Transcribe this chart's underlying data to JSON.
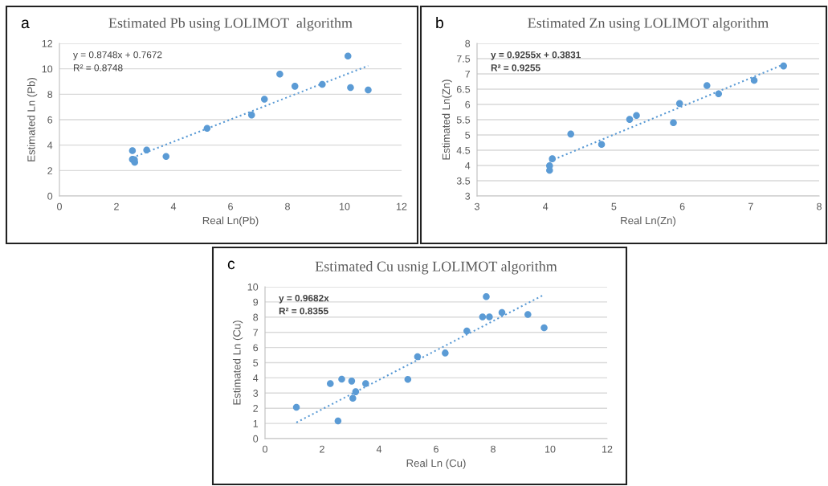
{
  "chart_data": [
    {
      "type": "scatter",
      "title": "Estimated Pb using LOLIMOT  algorithm",
      "xlabel": "Real Ln(Pb)",
      "ylabel": "Estimated Ln (Pb)",
      "annotations": [
        "a",
        "y = 0.8748x + 0.7672",
        "R² = 0.8748"
      ],
      "xlim": [
        0,
        12
      ],
      "ylim": [
        0,
        12
      ],
      "xticks": [
        0,
        2,
        4,
        6,
        8,
        10,
        12
      ],
      "yticks": [
        0,
        2,
        4,
        6,
        8,
        10,
        12
      ],
      "grid": "y",
      "marker": "circle",
      "series": [
        {
          "color": "#5b9bd5",
          "x": [
            2.56,
            3.06,
            3.74,
            2.56,
            2.63,
            2.64,
            5.18,
            6.74,
            7.19,
            7.73,
            8.26,
            9.22,
            10.12,
            10.21,
            10.83
          ],
          "values": [
            3.57,
            3.61,
            3.11,
            2.88,
            2.86,
            2.65,
            5.32,
            6.37,
            7.61,
            9.58,
            8.63,
            8.78,
            11.01,
            8.53,
            8.34
          ]
        },
        {
          "type": "line",
          "color": "#5b9bd5",
          "line_style": "dotted",
          "marker": "none",
          "x": [
            2.56,
            10.83
          ],
          "values": [
            3.01,
            10.24
          ]
        }
      ]
    },
    {
      "type": "scatter",
      "title": "Estimated Zn using LOLIMOT algorithm",
      "xlabel": "Real Ln(Zn)",
      "ylabel": "Estimated Ln(Zn)",
      "annotations": [
        "b",
        "y = 0.9255x + 0.3831",
        "R² = 0.9255"
      ],
      "xlim": [
        3,
        8
      ],
      "ylim": [
        3,
        8
      ],
      "xticks": [
        3,
        4,
        5,
        6,
        7,
        8
      ],
      "yticks": [
        3,
        3.5,
        4,
        4.5,
        5,
        5.5,
        6,
        6.5,
        7,
        7.5,
        8
      ],
      "grid": "y",
      "marker": "circle",
      "series": [
        {
          "color": "#5b9bd5",
          "x": [
            4.06,
            4.06,
            4.1,
            4.37,
            4.82,
            5.23,
            5.33,
            5.87,
            5.96,
            6.36,
            6.53,
            7.05,
            7.48
          ],
          "values": [
            3.84,
            3.99,
            4.22,
            5.03,
            4.69,
            5.51,
            5.64,
            5.4,
            6.03,
            6.62,
            6.35,
            6.79,
            7.26
          ]
        },
        {
          "type": "line",
          "color": "#5b9bd5",
          "line_style": "dotted",
          "marker": "none",
          "x": [
            4.06,
            7.48
          ],
          "values": [
            4.14,
            7.31
          ]
        }
      ]
    },
    {
      "type": "scatter",
      "title": "Estimated Cu usnig LOLIMOT algorithm",
      "xlabel": "Real Ln (Cu)",
      "ylabel": "Estimated Ln (Cu)",
      "annotations": [
        "c",
        "y = 0.9682x",
        "R² = 0.8355"
      ],
      "xlim": [
        0,
        12
      ],
      "ylim": [
        0,
        10
      ],
      "xticks": [
        0,
        2,
        4,
        6,
        8,
        10,
        12
      ],
      "yticks": [
        0,
        1,
        2,
        3,
        4,
        5,
        6,
        7,
        8,
        9,
        10
      ],
      "grid": "y",
      "marker": "circle",
      "series": [
        {
          "color": "#5b9bd5",
          "x": [
            1.1,
            2.29,
            2.56,
            2.69,
            3.04,
            3.08,
            3.18,
            3.53,
            5.01,
            5.35,
            6.32,
            7.08,
            7.63,
            7.76,
            7.87,
            8.31,
            9.22,
            9.79
          ],
          "values": [
            2.06,
            3.62,
            1.16,
            3.92,
            3.79,
            2.66,
            3.09,
            3.62,
            3.9,
            5.4,
            5.64,
            7.09,
            8.02,
            9.35,
            8.02,
            8.31,
            8.17,
            7.3
          ]
        },
        {
          "type": "line",
          "color": "#5b9bd5",
          "line_style": "dotted",
          "marker": "none",
          "x": [
            1.1,
            9.79
          ],
          "values": [
            1.06,
            9.48
          ]
        }
      ]
    }
  ]
}
